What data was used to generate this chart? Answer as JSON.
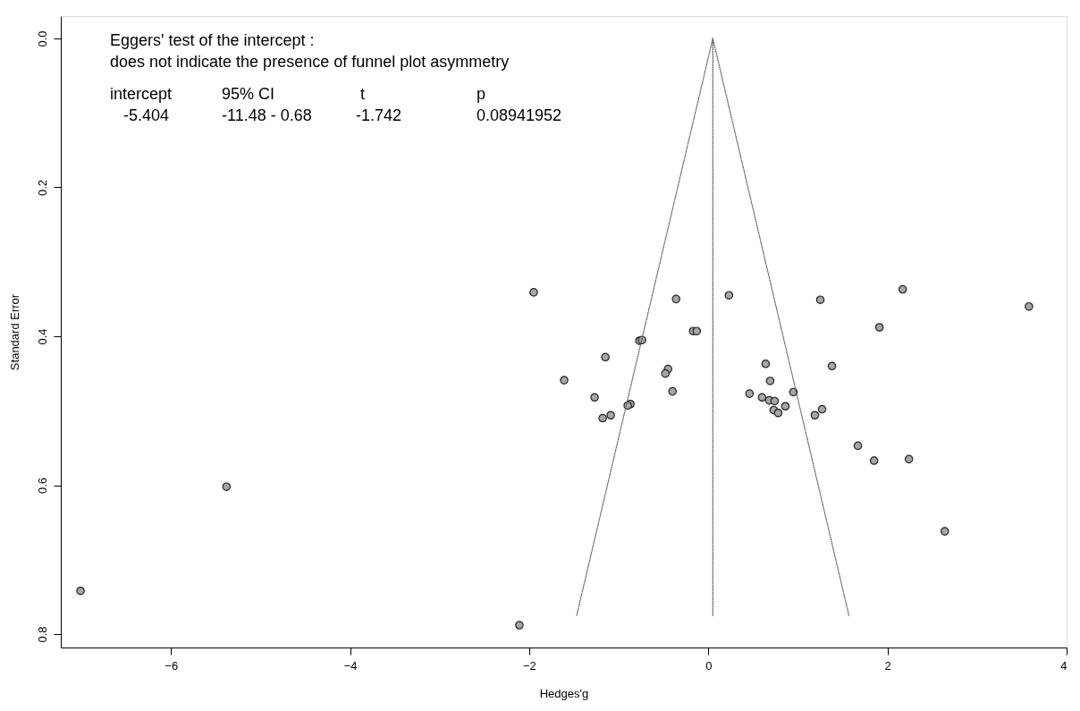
{
  "chart_data": {
    "type": "scatter",
    "xlabel": "Hedges'g",
    "ylabel": "Standard Error",
    "annotations": [
      "Eggers' test of the intercept :",
      "does not indicate the presence of funnel plot asymmetry",
      "intercept",
      "95% CI",
      "t",
      "p",
      "-5.404",
      "-11.48 - 0.68",
      "-1.742",
      "0.08941952"
    ],
    "xlim": [
      -7.23,
      4.0
    ],
    "xticks": [
      -6,
      -4,
      -2,
      0,
      2,
      4
    ],
    "ylim": [
      0.818,
      -0.03
    ],
    "yticks": [
      {
        "value": 0,
        "label": "0.0"
      },
      0.2,
      0.4,
      0.6,
      0.8
    ],
    "grid": false,
    "marker": "circle",
    "series": [
      {
        "color": "#a6a6a6",
        "x": [
          -1.95,
          -0.36,
          0.23,
          -0.17,
          -0.13,
          -0.77,
          -0.74,
          -1.15,
          -1.61,
          -0.45,
          -0.48,
          -0.4,
          -1.27,
          -0.87,
          -0.9,
          -1.09,
          -1.18,
          1.25,
          2.17,
          3.58,
          1.91,
          0.64,
          1.38,
          0.69,
          0.46,
          0.95,
          0.6,
          0.68,
          0.74,
          0.86,
          0.73,
          0.78,
          1.27,
          1.19,
          1.67,
          1.85,
          2.24,
          2.64,
          -7.01,
          -5.38,
          -2.11
        ],
        "values": [
          0.341,
          0.35,
          0.345,
          0.393,
          0.393,
          0.406,
          0.405,
          0.428,
          0.459,
          0.444,
          0.45,
          0.474,
          0.482,
          0.491,
          0.493,
          0.506,
          0.51,
          0.351,
          0.337,
          0.36,
          0.388,
          0.437,
          0.44,
          0.46,
          0.477,
          0.475,
          0.482,
          0.486,
          0.487,
          0.494,
          0.499,
          0.503,
          0.498,
          0.506,
          0.547,
          0.567,
          0.565,
          0.662,
          0.742,
          0.602,
          0.788
        ]
      },
      {
        "type": "line",
        "color": "#555555",
        "line_style": "dotted",
        "marker": "none",
        "x": [
          0.05,
          0.05,
          -1.47
        ],
        "values": [
          0.775,
          0.0,
          0.775
        ]
      },
      {
        "type": "line",
        "color": "#555555",
        "line_style": "dotted",
        "marker": "none",
        "x": [
          0.05,
          1.57
        ],
        "values": [
          0.0,
          0.775
        ]
      }
    ]
  }
}
